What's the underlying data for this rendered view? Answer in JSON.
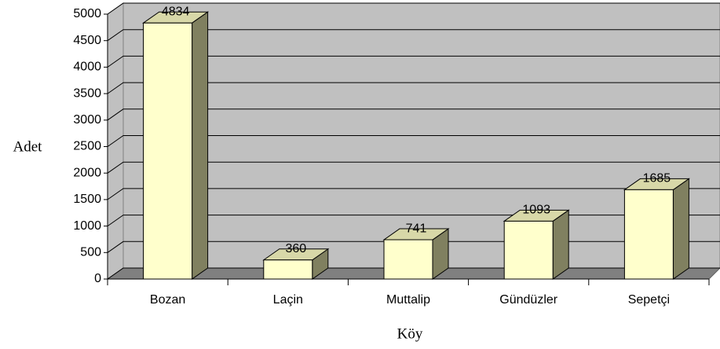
{
  "chart_data": {
    "type": "bar3d",
    "xlabel": "Köy",
    "ylabel": "Adet",
    "categories": [
      "Bozan",
      "Laçin",
      "Muttalip",
      "Gündüzler",
      "Sepetçi"
    ],
    "values": [
      4834,
      360,
      741,
      1093,
      1685
    ],
    "color": "#ffffcc",
    "ylim": [
      0,
      5000
    ],
    "yticks": [
      0,
      500,
      1000,
      1500,
      2000,
      2500,
      3000,
      3500,
      4000,
      4500,
      5000
    ],
    "grid": true
  }
}
